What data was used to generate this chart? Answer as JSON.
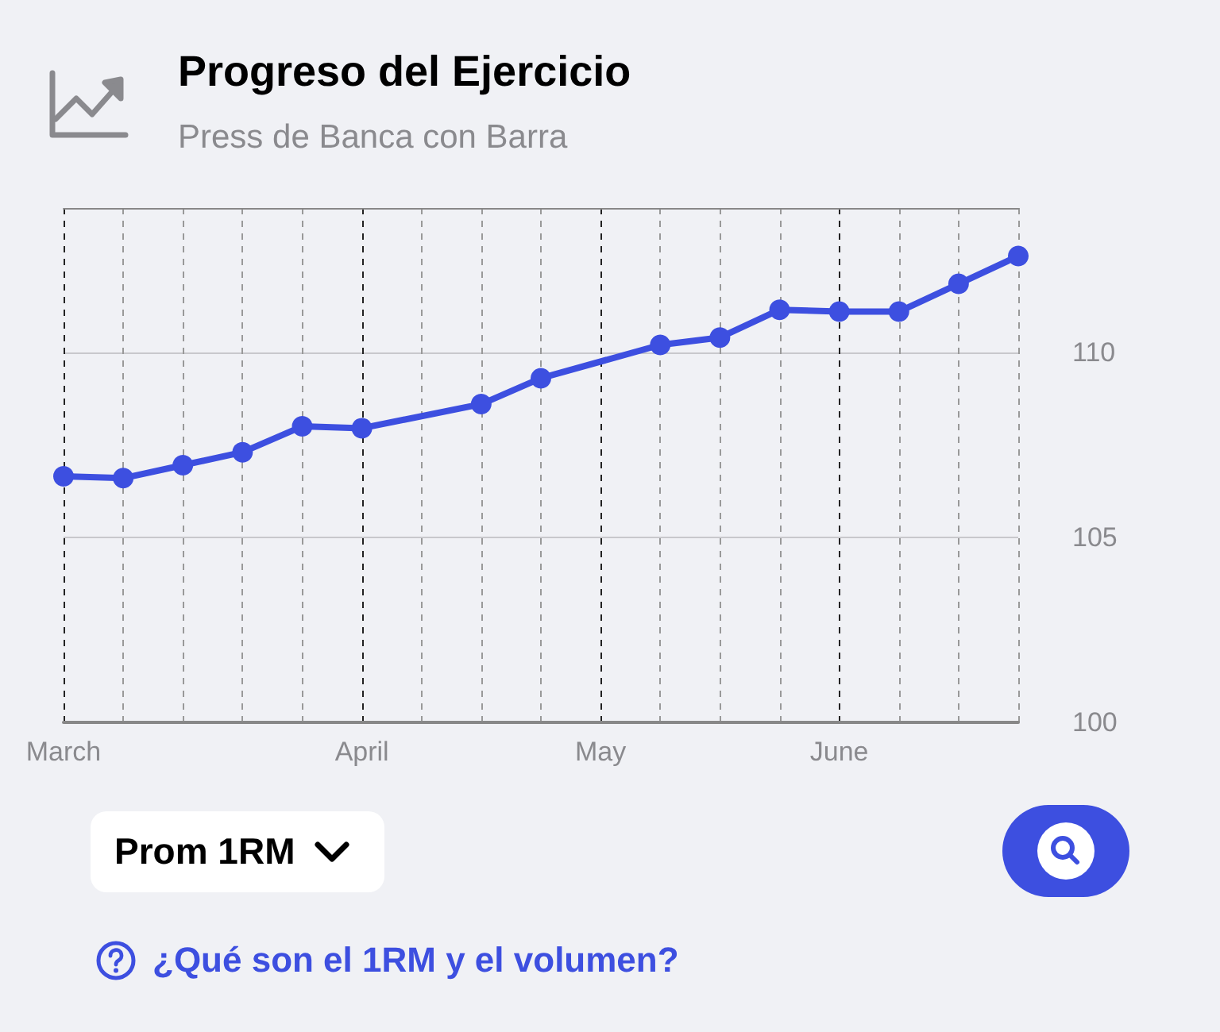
{
  "chart_data": {
    "type": "line",
    "title": "Progreso del Ejercicio",
    "subtitle": "Press de Banca con Barra",
    "categories": [
      "March",
      null,
      null,
      null,
      null,
      "April",
      null,
      null,
      null,
      "May",
      null,
      null,
      null,
      "June",
      null,
      null,
      null
    ],
    "series": [
      {
        "color": "#3d4fe0",
        "values": [
          106.65,
          106.6,
          106.95,
          107.3,
          108.0,
          107.95,
          null,
          108.6,
          109.3,
          null,
          110.2,
          110.4,
          111.15,
          111.1,
          111.1,
          111.85,
          112.6
        ]
      }
    ],
    "ylim": [
      100,
      113.9
    ],
    "yticks": [
      100,
      105,
      110
    ],
    "grid": true,
    "marker": "circle",
    "line_style": "solid",
    "annotations": [
      "Prom 1RM",
      "¿Qué son el 1RM y el volumen?"
    ]
  }
}
